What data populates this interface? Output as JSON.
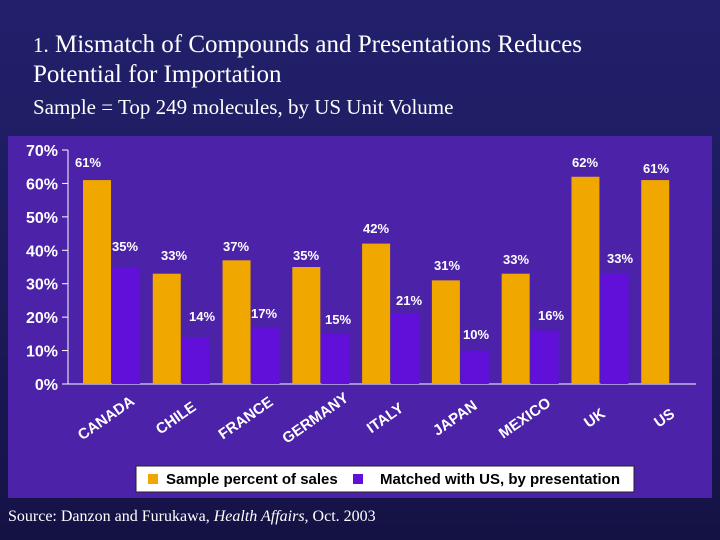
{
  "title_num": "1.",
  "title_text": "Mismatch of Compounds and Presentations Reduces",
  "title_line2": "Potential for Importation",
  "subtitle": "Sample = Top 249 molecules, by US Unit Volume",
  "source": {
    "prefix": "Source: Danzon and Furukawa, ",
    "journal": "Health Affairs,",
    "suffix": " Oct. 2003"
  },
  "colors": {
    "series1": "#f0a800",
    "series2": "#6010d8",
    "panel": "#4b22a8",
    "text": "#ffffff"
  },
  "chart_data": {
    "type": "bar",
    "categories": [
      "CANADA",
      "CHILE",
      "FRANCE",
      "GERMANY",
      "ITALY",
      "JAPAN",
      "MEXICO",
      "UK",
      "US"
    ],
    "series": [
      {
        "name": "Sample percent of sales",
        "values": [
          61,
          33,
          37,
          35,
          42,
          31,
          33,
          62,
          61
        ]
      },
      {
        "name": "Matched with US, by presentation",
        "values": [
          35,
          14,
          17,
          15,
          21,
          10,
          16,
          33,
          null
        ]
      }
    ],
    "data_labels": [
      [
        "61%",
        "33%",
        "37%",
        "35%",
        "42%",
        "31%",
        "33%",
        "62%",
        "61%"
      ],
      [
        "35%",
        "14%",
        "17%",
        "15%",
        "21%",
        "10%",
        "16%",
        "33%",
        ""
      ]
    ],
    "ylim": [
      0,
      70
    ],
    "yticks": [
      0,
      10,
      20,
      30,
      40,
      50,
      60,
      70
    ],
    "ytick_labels": [
      "0%",
      "10%",
      "20%",
      "30%",
      "40%",
      "50%",
      "60%",
      "70%"
    ],
    "grid": false,
    "legend": "bottom",
    "xlabel": "",
    "ylabel": ""
  }
}
